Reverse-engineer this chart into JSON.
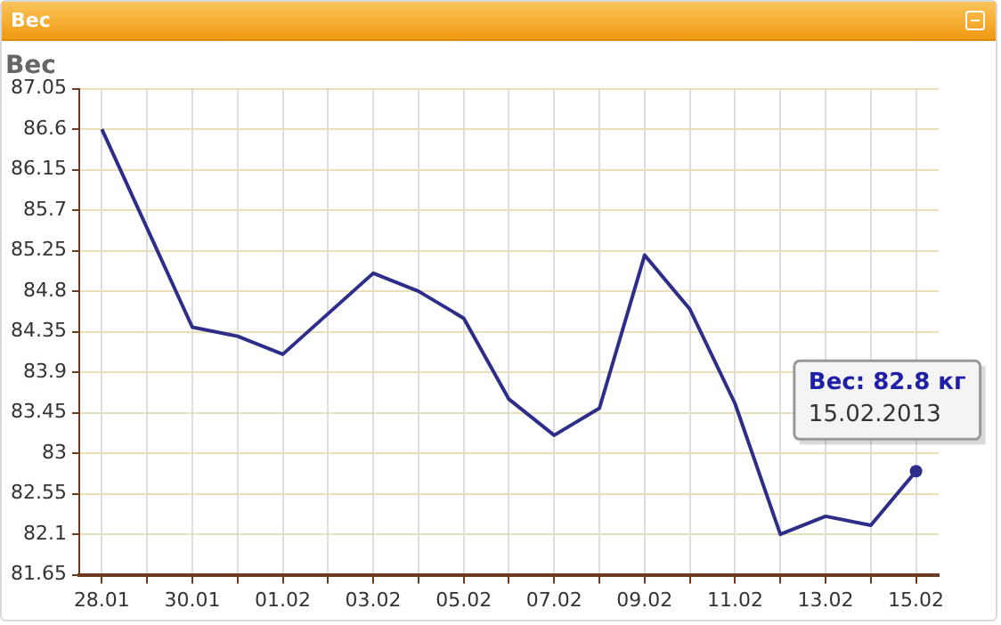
{
  "chart_data": {
    "type": "line",
    "title": "Вес",
    "categories": [
      "28.01",
      null,
      "30.01",
      null,
      "01.02",
      null,
      "03.02",
      null,
      "05.02",
      null,
      "07.02",
      null,
      "09.02",
      null,
      "11.02",
      null,
      "13.02",
      null,
      "15.02"
    ],
    "series": [
      {
        "color": "#2e2e8a",
        "values": [
          86.6,
          85.5,
          84.4,
          84.3,
          84.1,
          84.55,
          85.0,
          84.8,
          84.5,
          83.6,
          83.2,
          83.5,
          85.2,
          84.6,
          83.55,
          82.1,
          82.3,
          82.2,
          82.8
        ]
      }
    ],
    "ylim": [
      81.65,
      87.05
    ],
    "yticks": [
      81.65,
      82.1,
      82.55,
      83,
      83.45,
      83.9,
      84.35,
      84.8,
      85.25,
      85.7,
      86.15,
      86.6,
      87.05
    ],
    "grid": true,
    "legend": false,
    "annotations": [
      "Вес",
      {
        "text": "Вес: 82.8 кг\n15.02.2013",
        "x": "15.02",
        "y": 82.8
      }
    ]
  }
}
